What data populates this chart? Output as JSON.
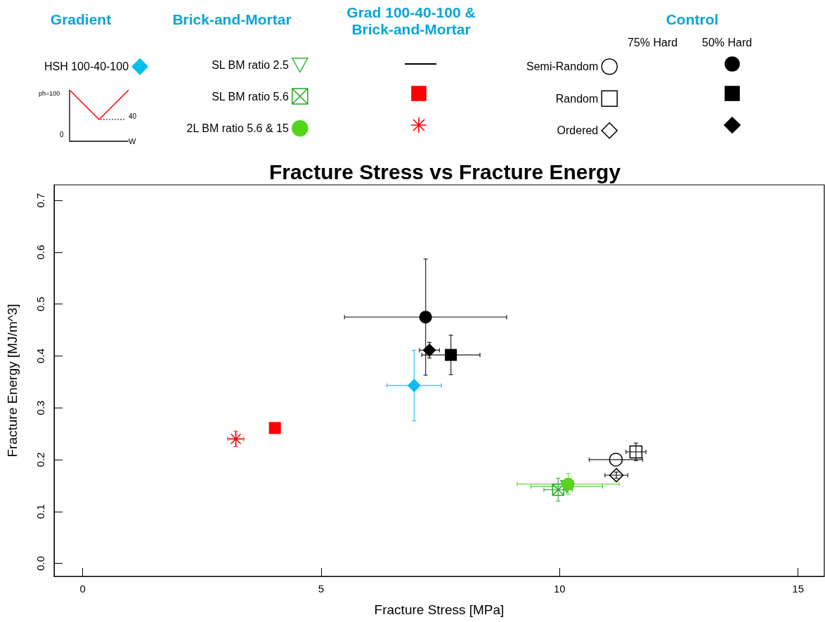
{
  "chart_data": {
    "type": "scatter",
    "title": "Fracture Stress vs Fracture Energy",
    "xlabel": "Fracture Stress [MPa]",
    "ylabel": "Fracture Energy [MJ/m^3]",
    "xlim": [
      -0.6,
      15.55
    ],
    "xticks": [
      0,
      5,
      10,
      15
    ],
    "ylim": [
      -0.025,
      0.73
    ],
    "yticks": [
      {
        "value": 0,
        "label": "0.0"
      },
      0.1,
      0.2,
      0.3,
      0.4,
      0.5,
      0.6,
      0.7
    ],
    "legend": "top",
    "annotations": [
      "Gradient",
      "Brick-and-Mortar",
      "Grad 100-40-100 & Brick-and-Mortar",
      "Control",
      "75% Hard",
      "50% Hard",
      "ph=100",
      "40",
      "0",
      "W"
    ],
    "series": [
      {
        "name": "HSH 100-40-100",
        "color": "#00bff3",
        "marker": "diamond",
        "x": [
          6.95
        ],
        "values": [
          0.343
        ],
        "xerrors": [
          0.57
        ],
        "errors": [
          0.068
        ]
      },
      {
        "name": "SL BM ratio 2.5",
        "color": "#2db82d",
        "marker": "triangle",
        "x": [
          10.15
        ],
        "values": [
          0.148
        ],
        "xerrors": [
          0.75
        ],
        "errors": [
          null
        ]
      },
      {
        "name": "SL BM ratio 5.6",
        "color": "#22a622",
        "marker": "cross",
        "x": [
          9.97
        ],
        "values": [
          0.142
        ],
        "xerrors": [
          0.3
        ],
        "errors": [
          0.022
        ]
      },
      {
        "name": "2L BM ratio 5.6 & 15",
        "color": "#55d41a",
        "marker": "circle",
        "x": [
          10.18
        ],
        "values": [
          0.153
        ],
        "xerrors": [
          1.07
        ],
        "errors": [
          0.02
        ]
      },
      {
        "color": "#ff0000",
        "marker": "square",
        "x": [
          4.03
        ],
        "values": [
          0.261
        ]
      },
      {
        "color": "#ff0000",
        "marker": "cross",
        "x": [
          3.21
        ],
        "values": [
          0.24
        ],
        "xerrors": [
          0.17
        ],
        "errors": [
          0.015
        ]
      },
      {
        "name": "Semi-Random",
        "color": "#000000",
        "marker": "circle",
        "x": [
          11.18
        ],
        "values": [
          0.2
        ],
        "xerrors": [
          0.56
        ]
      },
      {
        "color": "#000000",
        "marker": "circle",
        "x": [
          7.19
        ],
        "values": [
          0.475
        ],
        "xerrors": [
          1.7
        ],
        "errors": [
          0.112
        ]
      },
      {
        "name": "Random",
        "color": "#000000",
        "marker": "square",
        "x": [
          11.6
        ],
        "values": [
          0.215
        ],
        "xerrors": [
          0.21
        ],
        "errors": [
          0.017
        ]
      },
      {
        "color": "#000000",
        "marker": "square",
        "x": [
          7.72
        ],
        "values": [
          0.402
        ],
        "xerrors": [
          0.61
        ],
        "errors": [
          0.038
        ]
      },
      {
        "name": "Ordered",
        "color": "#000000",
        "marker": "diamond",
        "x": [
          11.19
        ],
        "values": [
          0.17
        ],
        "xerrors": [
          0.24
        ],
        "errors": [
          0.006
        ]
      },
      {
        "color": "#000000",
        "marker": "diamond",
        "x": [
          7.27
        ],
        "values": [
          0.411
        ],
        "xerrors": [
          0.21
        ],
        "errors": [
          0.015
        ]
      }
    ]
  }
}
